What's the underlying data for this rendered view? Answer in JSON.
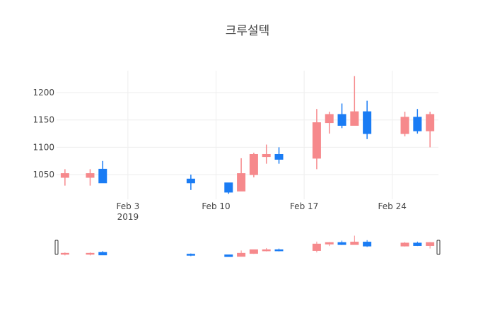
{
  "chart_data": {
    "type": "candlestick",
    "title": "크루설텍",
    "increasing_color": "#F6898C",
    "decreasing_color": "#1A7CF4",
    "ylim": [
      1005,
      1240
    ],
    "xlim": [
      "2019-01-28T20:00:00",
      "2019-02-28T04:00:00"
    ],
    "y_ticks": [
      1050,
      1100,
      1150,
      1200
    ],
    "x_ticks": [
      {
        "date": "2019-02-03",
        "label": "Feb 3",
        "sublabel": "2019"
      },
      {
        "date": "2019-02-10",
        "label": "Feb 10",
        "sublabel": ""
      },
      {
        "date": "2019-02-17",
        "label": "Feb 17",
        "sublabel": ""
      },
      {
        "date": "2019-02-24",
        "label": "Feb 24",
        "sublabel": ""
      }
    ],
    "grid": true,
    "rangeslider": true,
    "candles": [
      {
        "date": "2019-01-29",
        "open": 1045,
        "high": 1060,
        "low": 1030,
        "close": 1052
      },
      {
        "date": "2019-01-31",
        "open": 1045,
        "high": 1060,
        "low": 1030,
        "close": 1052
      },
      {
        "date": "2019-02-01",
        "open": 1060,
        "high": 1075,
        "low": 1035,
        "close": 1035
      },
      {
        "date": "2019-02-08",
        "open": 1042,
        "high": 1050,
        "low": 1022,
        "close": 1035
      },
      {
        "date": "2019-02-11",
        "open": 1035,
        "high": 1035,
        "low": 1015,
        "close": 1018
      },
      {
        "date": "2019-02-12",
        "open": 1020,
        "high": 1080,
        "low": 1020,
        "close": 1052
      },
      {
        "date": "2019-02-13",
        "open": 1050,
        "high": 1090,
        "low": 1045,
        "close": 1087
      },
      {
        "date": "2019-02-14",
        "open": 1083,
        "high": 1105,
        "low": 1070,
        "close": 1087
      },
      {
        "date": "2019-02-15",
        "open": 1087,
        "high": 1100,
        "low": 1070,
        "close": 1078
      },
      {
        "date": "2019-02-18",
        "open": 1080,
        "high": 1170,
        "low": 1060,
        "close": 1145
      },
      {
        "date": "2019-02-19",
        "open": 1145,
        "high": 1165,
        "low": 1125,
        "close": 1160
      },
      {
        "date": "2019-02-20",
        "open": 1160,
        "high": 1180,
        "low": 1135,
        "close": 1140
      },
      {
        "date": "2019-02-21",
        "open": 1140,
        "high": 1230,
        "low": 1140,
        "close": 1165
      },
      {
        "date": "2019-02-22",
        "open": 1165,
        "high": 1185,
        "low": 1115,
        "close": 1125
      },
      {
        "date": "2019-02-25",
        "open": 1125,
        "high": 1165,
        "low": 1120,
        "close": 1155
      },
      {
        "date": "2019-02-26",
        "open": 1155,
        "high": 1170,
        "low": 1125,
        "close": 1130
      },
      {
        "date": "2019-02-27",
        "open": 1130,
        "high": 1165,
        "low": 1100,
        "close": 1160
      }
    ]
  }
}
